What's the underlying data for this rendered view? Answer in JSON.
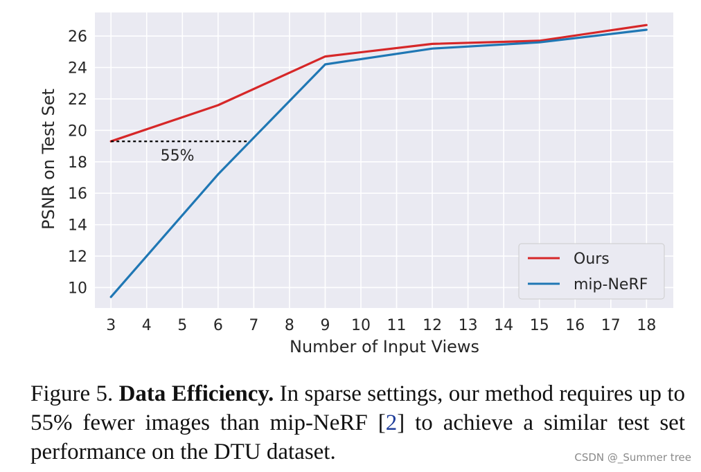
{
  "chart_data": {
    "type": "line",
    "x": [
      3,
      6,
      9,
      12,
      15,
      18
    ],
    "series": [
      {
        "name": "Ours",
        "color": "#d62728",
        "values": [
          19.3,
          21.6,
          24.7,
          25.5,
          25.7,
          26.7
        ]
      },
      {
        "name": "mip-NeRF",
        "color": "#1f77b4",
        "values": [
          9.4,
          17.2,
          24.2,
          25.2,
          25.6,
          26.4
        ]
      }
    ],
    "xlabel": "Number of Input Views",
    "ylabel": "PSNR on Test Set",
    "xticks": [
      3,
      4,
      5,
      6,
      7,
      8,
      9,
      10,
      11,
      12,
      13,
      14,
      15,
      16,
      17,
      18
    ],
    "yticks": [
      10,
      12,
      14,
      16,
      18,
      20,
      22,
      24,
      26
    ],
    "xlim": [
      2.55,
      18.75
    ],
    "ylim": [
      8.7,
      27.5
    ],
    "grid": true,
    "legend_position": "lower right",
    "annotation": {
      "label": "55%",
      "from_x": 3,
      "to_x": 6.8,
      "y": 19.3
    },
    "background": "#eaeaf2"
  },
  "caption": {
    "prefix": "Figure 5. ",
    "bold": "Data Efficiency.",
    "text1": " In sparse settings, our method requires up to 55% fewer images than mip-NeRF [",
    "ref": "2",
    "text2": "] to achieve a similar test set performance on the DTU dataset."
  },
  "watermark": "CSDN @_Summer tree"
}
